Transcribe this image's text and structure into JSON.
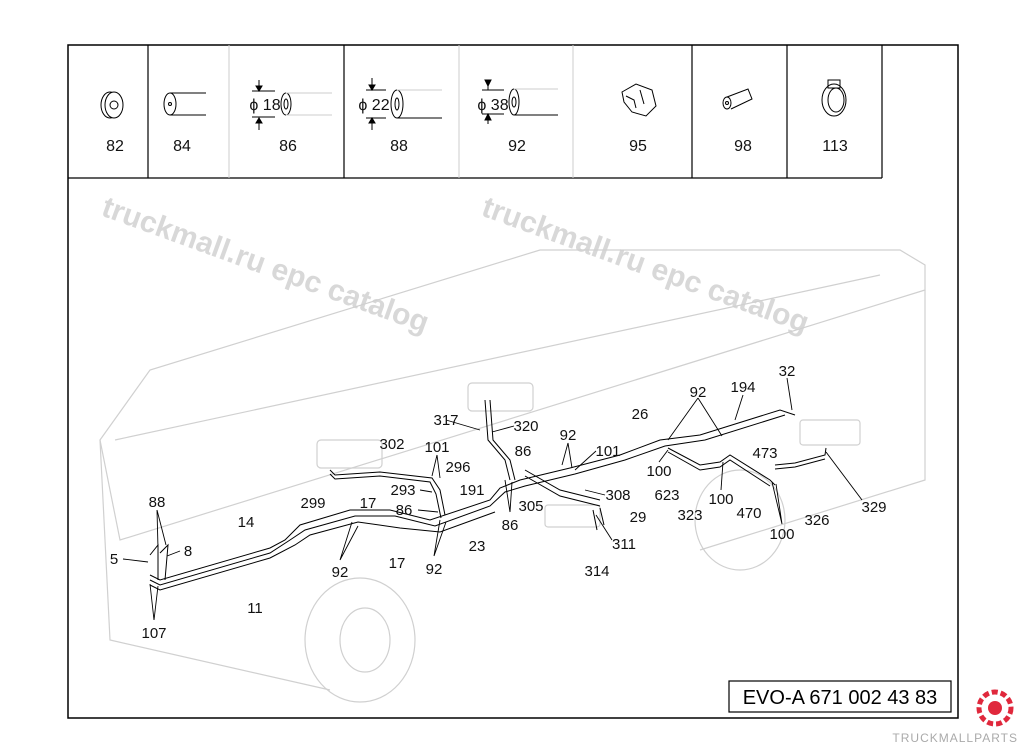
{
  "parts_table": [
    {
      "number": "82",
      "icon": "grommet-icon"
    },
    {
      "number": "84",
      "icon": "hose-icon"
    },
    {
      "number": "86",
      "icon": "hose-diameter-icon",
      "diameter": "18",
      "diameter_symbol": "ϕ"
    },
    {
      "number": "88",
      "icon": "hose-diameter-icon",
      "diameter": "22",
      "diameter_symbol": "ϕ"
    },
    {
      "number": "92",
      "icon": "hose-diameter-icon",
      "diameter": "38",
      "diameter_symbol": "ϕ"
    },
    {
      "number": "95",
      "icon": "clip-icon"
    },
    {
      "number": "98",
      "icon": "sleeve-icon"
    },
    {
      "number": "113",
      "icon": "hose-clamp-icon"
    }
  ],
  "callouts": [
    "88",
    "5",
    "8",
    "107",
    "14",
    "11",
    "92",
    "17",
    "17",
    "92",
    "86",
    "293",
    "296",
    "101",
    "302",
    "299",
    "191",
    "23",
    "317",
    "320",
    "86",
    "86",
    "305",
    "92",
    "101",
    "308",
    "311",
    "314",
    "29",
    "26",
    "92",
    "194",
    "32",
    "100",
    "623",
    "323",
    "100",
    "470",
    "473",
    "100",
    "326",
    "329"
  ],
  "drawing_code": "EVO-A 671 002 43 83",
  "watermark": "truckmall.ru epc catalog",
  "logo_text": "TRUCKMALLPARTS",
  "colors": {
    "line": "#000000",
    "vehicle_outline": "#d0d0d0",
    "watermark": "#d8d8d8",
    "logo": "#e0283c"
  }
}
